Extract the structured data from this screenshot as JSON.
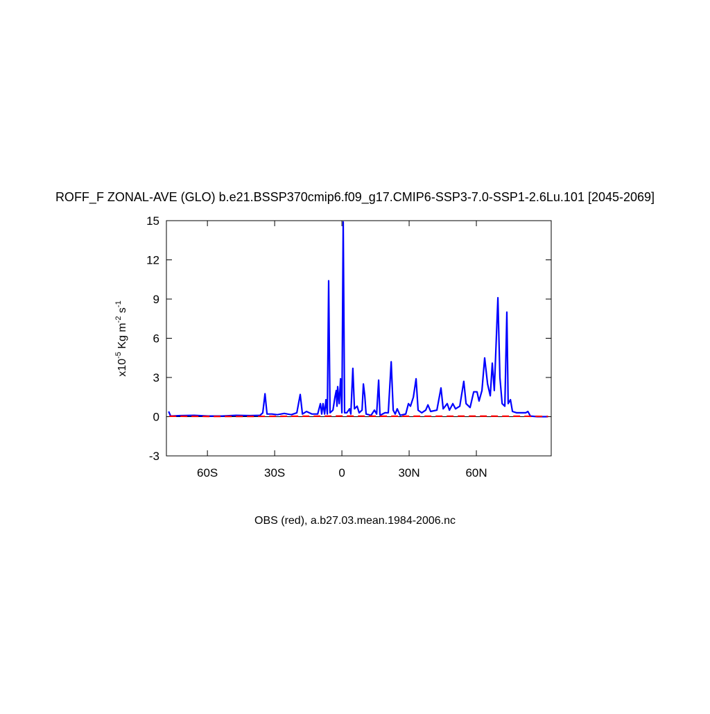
{
  "chart_data": {
    "type": "line",
    "title": "ROFF_F ZONAL-AVE (GLO) b.e21.BSSP370cmip6.f09_g17.CMIP6-SSP3-7.0-SSP1-2.6Lu.101 [2045-2069]",
    "x_label": "OBS (red), a.b27.03.mean.1984-2006.nc",
    "y_label_parts": [
      "x10",
      "-5",
      " Kg m",
      "-2",
      " s",
      "-1"
    ],
    "xlim": [
      -78.3,
      93.4
    ],
    "ylim": [
      -3,
      15
    ],
    "xticks": [
      {
        "value": -60,
        "label": "60S"
      },
      {
        "value": -30,
        "label": "30S"
      },
      0,
      {
        "value": 30,
        "label": "30N"
      },
      {
        "value": 60,
        "label": "60N"
      }
    ],
    "yticks": [
      -3,
      0,
      3,
      6,
      9,
      12,
      15
    ],
    "zero_line": true,
    "series": [
      {
        "color": "#0000ff",
        "dash": false,
        "x": [
          -77.3,
          -76.4,
          -72.1,
          -65.9,
          -59.7,
          -53.5,
          -47.3,
          -41.1,
          -36.5,
          -35.3,
          -34.3,
          -33.4,
          -31.2,
          -28.8,
          -25.7,
          -22.6,
          -20.1,
          -18.6,
          -17.6,
          -15.8,
          -13.3,
          -10.8,
          -9.6,
          -9.0,
          -8.4,
          -7.7,
          -7.1,
          -6.5,
          -5.9,
          -5.3,
          -4.0,
          -3.1,
          -2.5,
          -2.2,
          -1.9,
          -1.2,
          -0.6,
          0,
          0.6,
          1.2,
          2.2,
          3.4,
          4.0,
          4.9,
          5.6,
          6.8,
          7.7,
          9.0,
          9.6,
          10.2,
          10.8,
          13.0,
          14.5,
          15.5,
          16.4,
          17.0,
          19.2,
          20.7,
          22.0,
          22.9,
          23.8,
          24.7,
          26.0,
          28.5,
          29.7,
          30.6,
          31.9,
          33.1,
          34.0,
          35.6,
          37.4,
          38.4,
          39.6,
          42.4,
          44.2,
          45.2,
          47.0,
          48.0,
          49.5,
          50.7,
          52.6,
          54.4,
          55.4,
          57.2,
          58.8,
          60.3,
          61.2,
          62.5,
          63.7,
          65.0,
          66.2,
          67.1,
          68.0,
          69.6,
          70.5,
          71.5,
          72.7,
          73.6,
          74.2,
          75.2,
          76.1,
          78.0,
          80.1,
          82.0,
          83.0,
          84.1,
          87.2,
          91.9
        ],
        "values": [
          0.4,
          0.05,
          0.08,
          0.1,
          0.05,
          0.05,
          0.1,
          0.08,
          0.1,
          0.3,
          1.75,
          0.2,
          0.2,
          0.15,
          0.25,
          0.15,
          0.3,
          1.7,
          0.2,
          0.4,
          0.2,
          0.2,
          1.0,
          0.2,
          1.0,
          0.2,
          1.3,
          0.2,
          10.4,
          0.3,
          0.5,
          1.5,
          2.0,
          0.8,
          2.3,
          1.0,
          2.9,
          0.3,
          14.9,
          0.3,
          0.3,
          0.6,
          0.2,
          3.7,
          0.6,
          0.8,
          0.3,
          0.5,
          2.5,
          1.6,
          0.2,
          0.1,
          0.5,
          0.2,
          2.8,
          0.1,
          0.3,
          0.3,
          4.2,
          0.5,
          0.2,
          0.6,
          0.1,
          0.2,
          1.0,
          0.8,
          1.5,
          2.9,
          0.5,
          0.3,
          0.5,
          0.9,
          0.4,
          0.5,
          2.2,
          0.6,
          1.0,
          0.5,
          1.0,
          0.6,
          0.8,
          2.7,
          1.0,
          0.7,
          1.9,
          1.9,
          1.2,
          2.0,
          4.5,
          2.5,
          1.6,
          4.1,
          2.0,
          9.1,
          3.0,
          1.0,
          0.8,
          8.0,
          1.0,
          1.3,
          0.4,
          0.3,
          0.3,
          0.3,
          0.4,
          0.05,
          0.0,
          0.0
        ]
      },
      {
        "color": "#ff0000",
        "dash": true,
        "x": [
          -77,
          -60,
          -40,
          -20,
          0,
          20,
          40,
          60,
          80,
          92
        ],
        "values": [
          0.03,
          0.02,
          0.02,
          0.03,
          0.05,
          0.03,
          0.03,
          0.04,
          0.03,
          0.02
        ]
      }
    ]
  }
}
